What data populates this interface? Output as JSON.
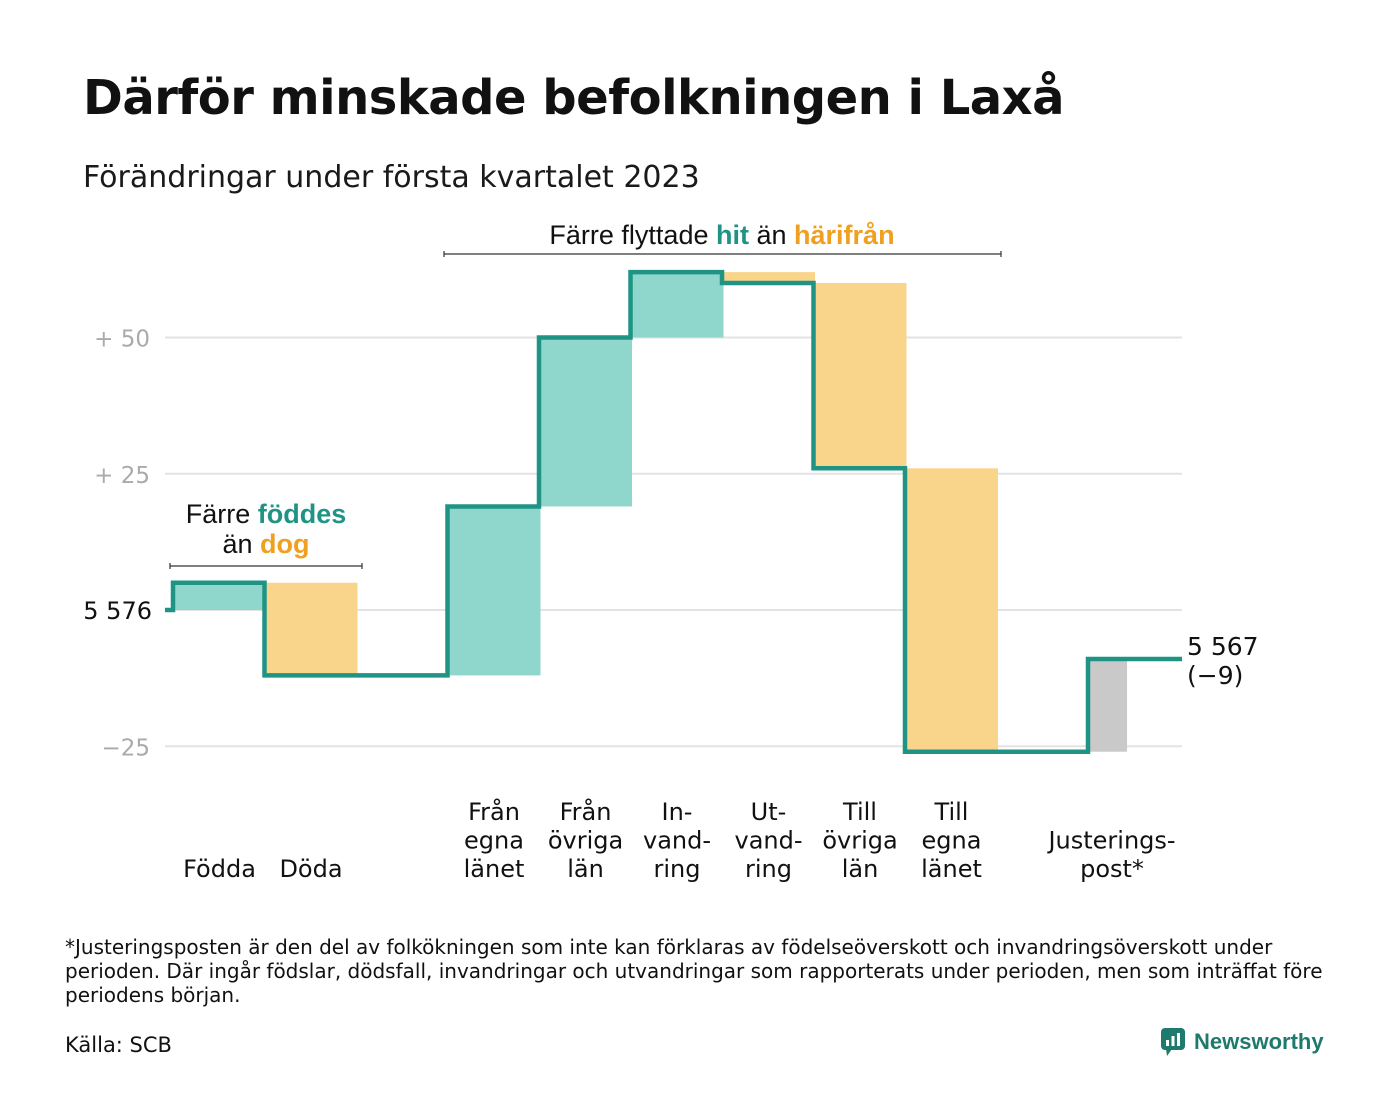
{
  "title": "Därför minskade befolkningen i Laxå",
  "subtitle": "Förändringar under första kvartalet 2023",
  "colors": {
    "positive": "#8fd6cc",
    "negative": "#f9d58c",
    "adjustment": "#c9c9c9",
    "line": "#1f9485",
    "teal_text": "#1f9485",
    "orange_text": "#f0a020",
    "grid": "#e3e3e3",
    "tick": "#aaaaaa"
  },
  "chart_data": {
    "type": "bar",
    "subtype": "waterfall",
    "start_value": 5576,
    "start_label": "5 576",
    "end_label": "5 567",
    "end_change_label": "(−9)",
    "y_ticks": [
      {
        "value": 50,
        "label": "+ 50"
      },
      {
        "value": 25,
        "label": "+ 25"
      },
      {
        "value": -25,
        "label": "−25"
      }
    ],
    "ylim": [
      -28,
      63
    ],
    "steps": [
      {
        "category": [
          "Födda"
        ],
        "change": 5,
        "kind": "positive"
      },
      {
        "category": [
          "Döda"
        ],
        "change": -17,
        "kind": "negative"
      },
      {
        "category": [],
        "change": 0,
        "kind": "gap"
      },
      {
        "category": [
          "Från",
          "egna",
          "länet"
        ],
        "change": 31,
        "kind": "positive"
      },
      {
        "category": [
          "Från",
          "övriga",
          "län"
        ],
        "change": 31,
        "kind": "positive"
      },
      {
        "category": [
          "In-",
          "vand-",
          "ring"
        ],
        "change": 12,
        "kind": "positive"
      },
      {
        "category": [
          "Ut-",
          "vand-",
          "ring"
        ],
        "change": -2,
        "kind": "negative"
      },
      {
        "category": [
          "Till",
          "övriga",
          "län"
        ],
        "change": -34,
        "kind": "negative"
      },
      {
        "category": [
          "Till",
          "egna",
          "länet"
        ],
        "change": -52,
        "kind": "negative"
      },
      {
        "category": [],
        "change": 0,
        "kind": "gap"
      },
      {
        "category": [
          "Justerings-",
          "post*"
        ],
        "change": 17,
        "kind": "adjustment"
      }
    ],
    "annotations": [
      {
        "id": "births-deaths",
        "lines": [
          [
            {
              "text": "Färre ",
              "tone": "plain"
            },
            {
              "text": "föddes",
              "tone": "teal"
            }
          ],
          [
            {
              "text": "än ",
              "tone": "plain"
            },
            {
              "text": "dog",
              "tone": "orange"
            }
          ]
        ]
      },
      {
        "id": "migration",
        "lines": [
          [
            {
              "text": "Färre flyttade ",
              "tone": "plain"
            },
            {
              "text": "hit",
              "tone": "teal"
            },
            {
              "text": " än ",
              "tone": "plain"
            },
            {
              "text": "härifrån",
              "tone": "orange"
            }
          ]
        ]
      }
    ]
  },
  "footnote": "*Justeringsposten är den del av folkökningen som inte kan förklaras av födelseöverskott och invandringsöverskott under perioden. Där ingår födslar, dödsfall, invandringar och utvandringar som rapporterats under perioden, men som inträffat före periodens början.",
  "source": "Källa: SCB",
  "brand": "Newsworthy"
}
